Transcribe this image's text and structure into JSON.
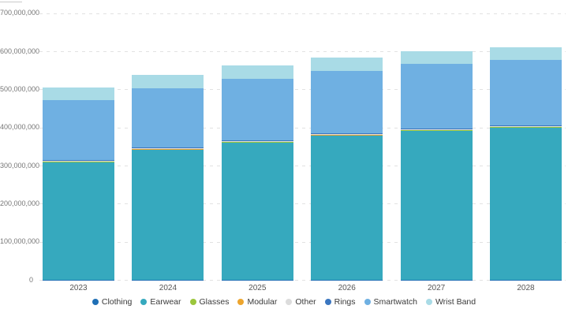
{
  "chart_data": {
    "type": "bar",
    "stacked": true,
    "title": "",
    "xlabel": "",
    "ylabel": "",
    "unit_note": "values in millions, axis shown in absolute units",
    "categories": [
      "2023",
      "2024",
      "2025",
      "2026",
      "2027",
      "2028"
    ],
    "series": [
      {
        "name": "Clothing",
        "color": "#1f6fb5",
        "values": [
          0.8,
          0.8,
          0.8,
          0.8,
          0.8,
          0.8
        ]
      },
      {
        "name": "Earwear",
        "color": "#36a9be",
        "values": [
          308,
          340,
          360,
          377,
          390,
          399
        ]
      },
      {
        "name": "Glasses",
        "color": "#9bc63c",
        "values": [
          3,
          3,
          3,
          3,
          3,
          3
        ]
      },
      {
        "name": "Modular",
        "color": "#eda52e",
        "values": [
          0.6,
          0.6,
          0.6,
          0.6,
          0.6,
          0.6
        ]
      },
      {
        "name": "Other",
        "color": "#dcdcdc",
        "values": [
          0.6,
          0.6,
          0.6,
          0.6,
          0.6,
          0.6
        ]
      },
      {
        "name": "Rings",
        "color": "#3b76c0",
        "values": [
          2,
          2,
          2,
          2,
          2,
          2
        ]
      },
      {
        "name": "Smartwatch",
        "color": "#6fb0e2",
        "values": [
          157,
          155,
          161,
          165,
          170,
          172
        ]
      },
      {
        "name": "Wrist Band",
        "color": "#a9dbe6",
        "values": [
          33,
          35,
          34,
          34,
          33,
          32
        ]
      }
    ],
    "totals": [
      505,
      537,
      562,
      583,
      600,
      610
    ],
    "ylim": [
      0,
      700
    ],
    "y_tick_labels": [
      "0",
      "100,000,000",
      "200,000,000",
      "300,000,000",
      "400,000,000",
      "500,000,000",
      "600,000,000",
      "700,000,000"
    ],
    "grid": "horizontal dashed",
    "legend_position": "bottom"
  }
}
